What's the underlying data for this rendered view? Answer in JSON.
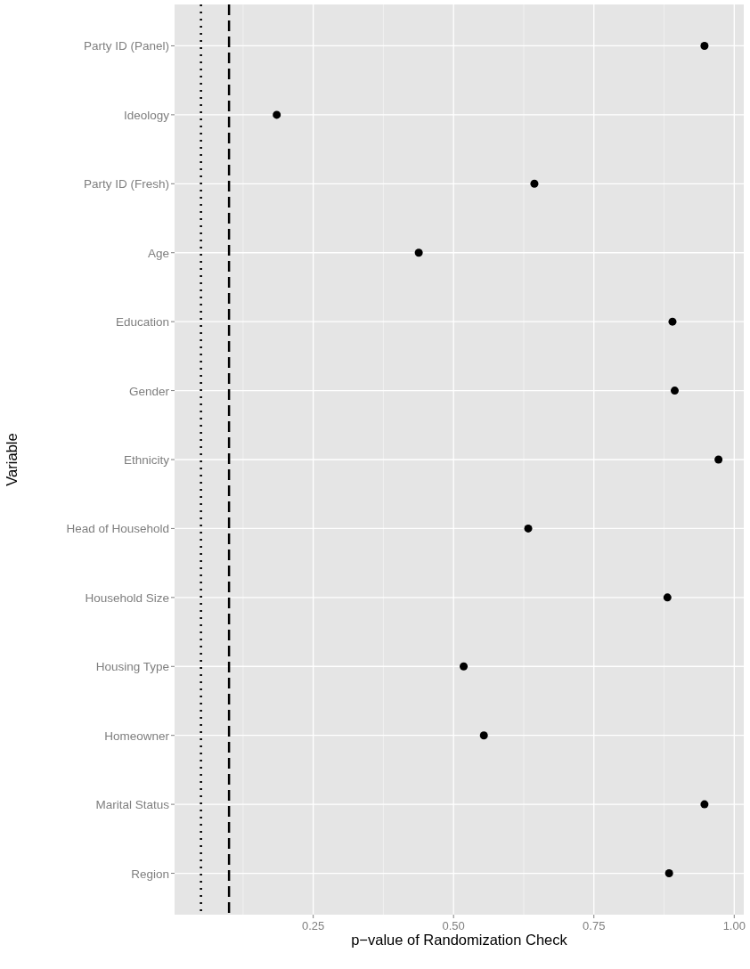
{
  "chart_data": {
    "type": "scatter",
    "orientation": "horizontal",
    "xlabel": "p−value of Randomization Check",
    "ylabel": "Variable",
    "categories": [
      "Party ID (Panel)",
      "Ideology",
      "Party ID (Fresh)",
      "Age",
      "Education",
      "Gender",
      "Ethnicity",
      "Head of Household",
      "Household Size",
      "Housing Type",
      "Homeowner",
      "Marital Status",
      "Region"
    ],
    "series": [
      {
        "color": "#000000",
        "values": [
          0.947,
          0.185,
          0.644,
          0.438,
          0.89,
          0.894,
          0.972,
          0.633,
          0.881,
          0.518,
          0.554,
          0.947,
          0.884
        ]
      }
    ],
    "xlim": [
      0.003,
      1.017
    ],
    "xticks": [
      0.25,
      {
        "value": 0.5,
        "label": "0.50"
      },
      0.75,
      {
        "value": 1,
        "label": "1.00"
      }
    ],
    "ref_lines": [
      {
        "axis": "x",
        "value": 0.05,
        "color": "#000000",
        "line_style": "dotted"
      },
      {
        "axis": "x",
        "value": 0.1,
        "color": "#000000",
        "line_style": "dashed"
      }
    ],
    "grid": true,
    "marker": "circle"
  }
}
